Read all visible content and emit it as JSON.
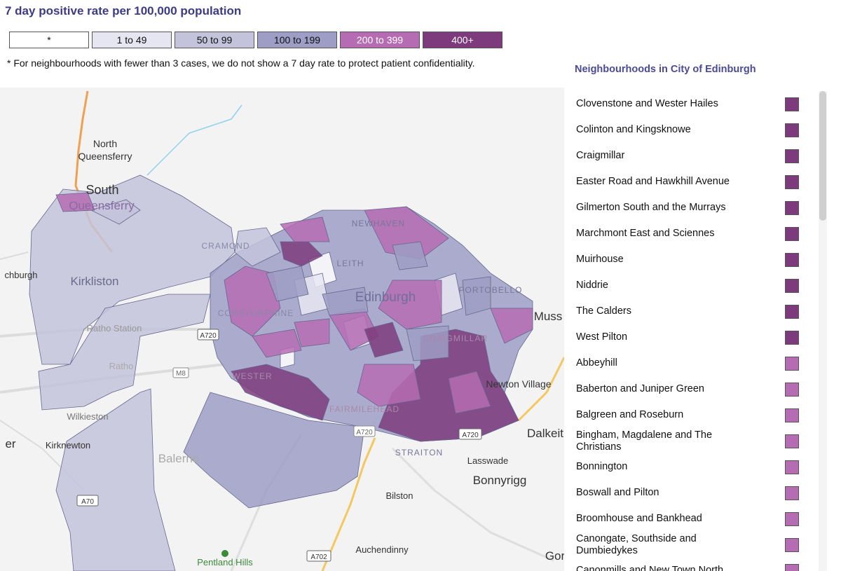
{
  "title": "7 day positive rate per 100,000 population",
  "legend": [
    {
      "label": "*",
      "color": "#ffffff"
    },
    {
      "label": "1 to 49",
      "color": "#e6e6f2"
    },
    {
      "label": "50 to 99",
      "color": "#c3c3dc"
    },
    {
      "label": "100 to 199",
      "color": "#9d9dc6"
    },
    {
      "label": "200 to 399",
      "color": "#b66cb3"
    },
    {
      "label": "400+",
      "color": "#7d3b7d"
    }
  ],
  "note": "* For neighbourhoods with fewer than 3 cases, we do not show a 7 day rate to protect patient confidentiality.",
  "map_labels": [
    "North",
    "Queensferry",
    "South",
    "Queensferry",
    "CRAMOND",
    "NEWHAVEN",
    "LEITH",
    "chburgh",
    "Kirkliston",
    "Ratho Station",
    "CORSTORPHINE",
    "Edinburgh",
    "PORTOBELLO",
    "Muss",
    "A720",
    "Ratho",
    "M8",
    "CRAIGMILLAR",
    "WESTER",
    "Newton Village",
    "Wilkieston",
    "FAIRMILEHEAD",
    "er",
    "Kirknewton",
    "A720",
    "A720",
    "Dalkeit",
    "STRAITON",
    "Balerno",
    "Lasswade",
    "Bonnyrigg",
    "A70",
    "Bilston",
    "Auchendinny",
    "A702",
    "Pentland Hills",
    "Gor"
  ],
  "list": {
    "heading": "Neighbourhoods in City of Edinburgh",
    "items": [
      {
        "name": "Clovenstone and Wester Hailes",
        "color": "#7d3b7d"
      },
      {
        "name": "Colinton and Kingsknowe",
        "color": "#7d3b7d"
      },
      {
        "name": "Craigmillar",
        "color": "#7d3b7d"
      },
      {
        "name": "Easter Road and Hawkhill Avenue",
        "color": "#7d3b7d"
      },
      {
        "name": "Gilmerton South and the Murrays",
        "color": "#7d3b7d"
      },
      {
        "name": "Marchmont East and Sciennes",
        "color": "#7d3b7d"
      },
      {
        "name": "Muirhouse",
        "color": "#7d3b7d"
      },
      {
        "name": "Niddrie",
        "color": "#7d3b7d"
      },
      {
        "name": "The Calders",
        "color": "#7d3b7d"
      },
      {
        "name": "West Pilton",
        "color": "#7d3b7d"
      },
      {
        "name": "Abbeyhill",
        "color": "#b66cb3"
      },
      {
        "name": "Baberton and Juniper Green",
        "color": "#b66cb3"
      },
      {
        "name": "Balgreen and Roseburn",
        "color": "#b66cb3"
      },
      {
        "name": "Bingham, Magdalene and The Christians",
        "color": "#b66cb3"
      },
      {
        "name": "Bonnington",
        "color": "#b66cb3"
      },
      {
        "name": "Boswall and Pilton",
        "color": "#b66cb3"
      },
      {
        "name": "Broomhouse and Bankhead",
        "color": "#b66cb3"
      },
      {
        "name": "Canongate, Southside and Dumbiedykes",
        "color": "#b66cb3"
      },
      {
        "name": "Canonmills and New Town North",
        "color": "#b66cb3"
      }
    ]
  }
}
